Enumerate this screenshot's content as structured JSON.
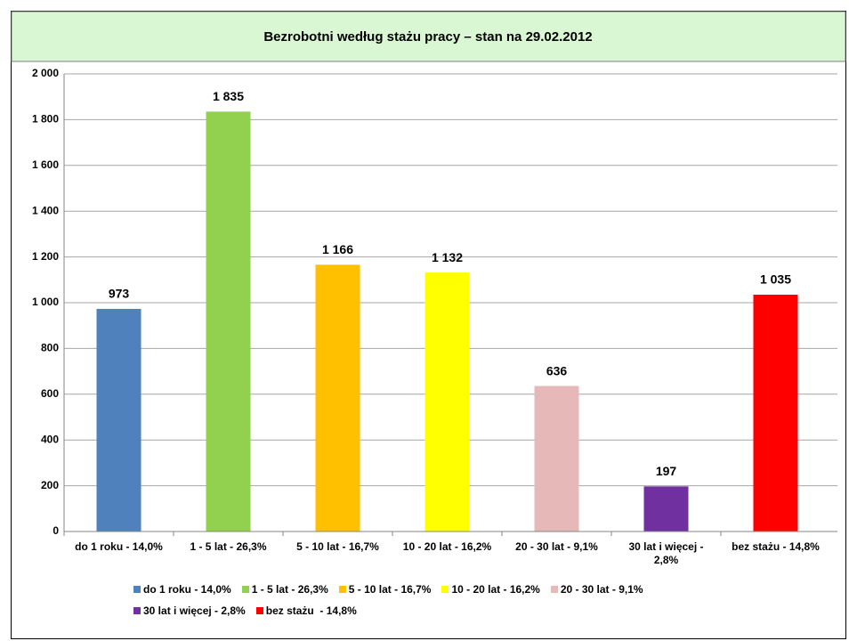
{
  "chart_data": {
    "type": "bar",
    "title": "Bezrobotni według stażu pracy – stan na 29.02.2012",
    "categories": [
      "do 1 roku - 14,0%",
      "1 - 5 lat - 26,3%",
      "5 - 10 lat - 16,7%",
      "10 - 20 lat - 16,2%",
      "20 - 30 lat - 9,1%",
      "30 lat i więcej - 2,8%",
      "bez stażu  - 14,8%"
    ],
    "values": [
      973,
      1835,
      1166,
      1132,
      636,
      197,
      1035
    ],
    "value_labels": [
      "973",
      "1 835",
      "1 166",
      "1 132",
      "636",
      "197",
      "1 035"
    ],
    "colors": [
      "#4f81bd",
      "#92d050",
      "#ffc000",
      "#ffff00",
      "#e6b9b8",
      "#7030a0",
      "#ff0000"
    ],
    "ylim": [
      0,
      2000
    ],
    "yticks": [
      0,
      200,
      400,
      600,
      800,
      {
        "value": 1000,
        "label": "1 000"
      },
      {
        "value": 1200,
        "label": "1 200"
      },
      {
        "value": 1400,
        "label": "1 400"
      },
      {
        "value": 1600,
        "label": "1 600"
      },
      {
        "value": 1800,
        "label": "1 800"
      },
      {
        "value": 2000,
        "label": "2 000"
      }
    ],
    "grid": true,
    "legend": "bottom"
  }
}
